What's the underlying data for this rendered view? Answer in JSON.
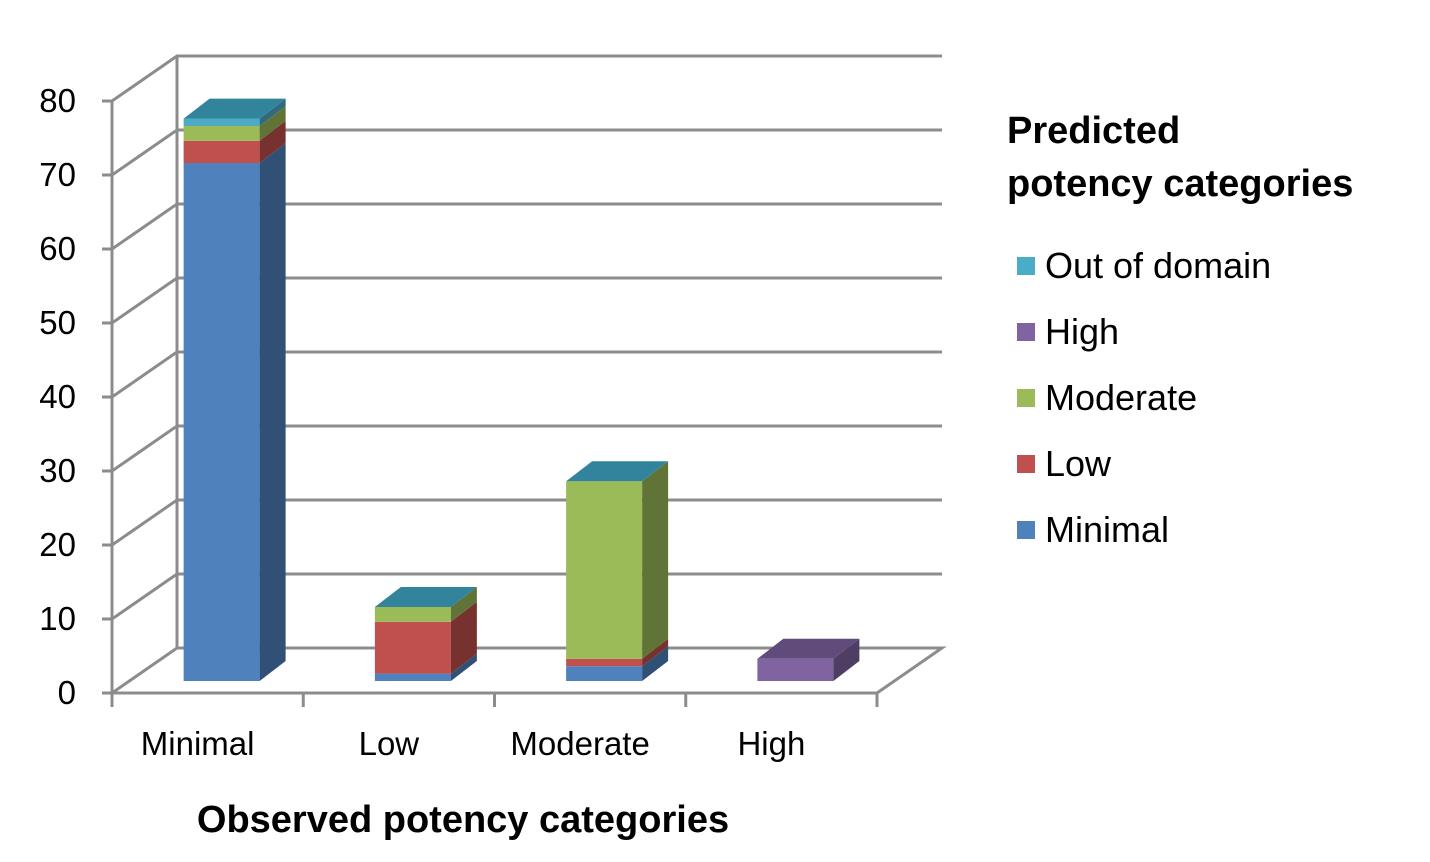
{
  "chart_data": {
    "type": "bar",
    "stacked": true,
    "three_d": true,
    "categories": [
      "Minimal",
      "Low",
      "Moderate",
      "High"
    ],
    "series": [
      {
        "name": "Minimal",
        "color": "#4F81BD",
        "values": [
          70,
          1,
          2,
          0
        ]
      },
      {
        "name": "Low",
        "color": "#C0504D",
        "values": [
          3,
          7,
          1,
          0
        ]
      },
      {
        "name": "Moderate",
        "color": "#9BBB59",
        "values": [
          2,
          2,
          24,
          0
        ]
      },
      {
        "name": "High",
        "color": "#8064A2",
        "values": [
          0,
          0,
          0,
          3
        ]
      },
      {
        "name": "Out of domain",
        "color": "#4BACC6",
        "values": [
          1,
          0,
          0,
          0
        ]
      }
    ],
    "xlabel": "Observed potency categories",
    "ylabel": "",
    "ylim": [
      0,
      80
    ],
    "yticks": [
      "0",
      "10",
      "20",
      "30",
      "40",
      "50",
      "60",
      "70",
      "80"
    ],
    "grid": true,
    "legend": {
      "title": "Predicted potency categories",
      "title_lines": [
        "Predicted",
        "potency categories"
      ],
      "placement": "right",
      "order": [
        "Out of domain",
        "High",
        "Moderate",
        "Low",
        "Minimal"
      ]
    }
  }
}
